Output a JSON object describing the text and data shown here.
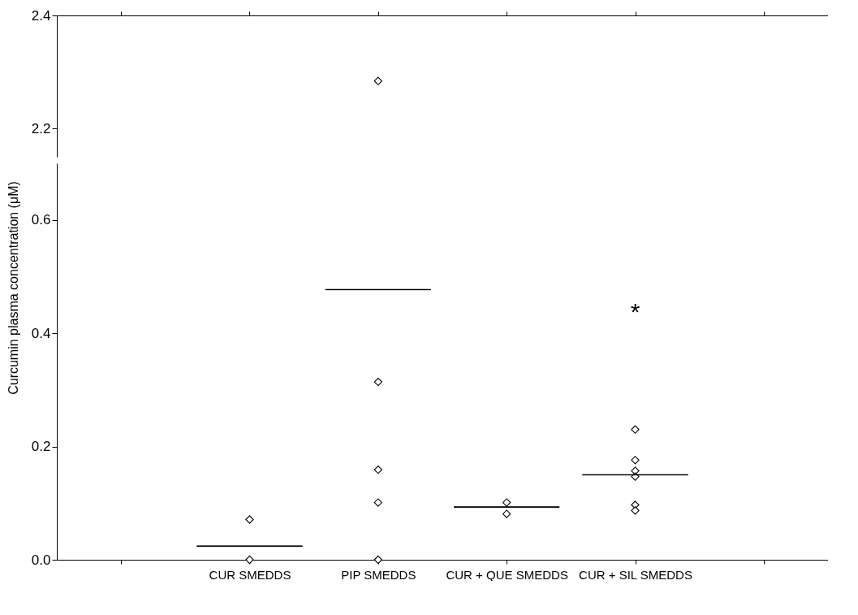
{
  "chart_data": [
    {
      "type": "scatter",
      "categories": [
        null,
        "CUR SMEDDS",
        "PIP SMEDDS",
        "CUR + QUE SMEDDS",
        "CUR + SIL SMEDDS",
        null
      ],
      "ylim": [
        2.15,
        2.4
      ],
      "yticks": [
        2.2,
        2.4
      ],
      "tick_labels": "y",
      "marker": "diamond",
      "grid": false,
      "series": [
        {
          "color": "#000000",
          "x": [
            "PIP SMEDDS"
          ],
          "values": [
            2.284
          ]
        }
      ]
    },
    {
      "type": "scatter",
      "categories": [
        null,
        "CUR SMEDDS",
        "PIP SMEDDS",
        "CUR + QUE SMEDDS",
        "CUR + SIL SMEDDS",
        null
      ],
      "ylim": [
        0,
        0.7
      ],
      "yticks": [
        {
          "value": 0,
          "label": "0.0"
        },
        0.2,
        0.4,
        0.6
      ],
      "ylabel": "Curcumin plasma concentration (μM)",
      "marker": "diamond",
      "grid": false,
      "annotations": [
        "*"
      ],
      "series": [
        {
          "color": "#000000",
          "x": [
            "CUR SMEDDS",
            "CUR SMEDDS",
            "PIP SMEDDS",
            "PIP SMEDDS",
            "PIP SMEDDS",
            "PIP SMEDDS",
            "CUR + QUE SMEDDS",
            "CUR + QUE SMEDDS",
            "CUR + SIL SMEDDS",
            "CUR + SIL SMEDDS",
            "CUR + SIL SMEDDS",
            "CUR + SIL SMEDDS",
            "CUR + SIL SMEDDS",
            "CUR + SIL SMEDDS"
          ],
          "values": [
            0.071,
            0,
            0.314,
            0.159,
            0.101,
            0,
            0.101,
            0.081,
            0.23,
            0.176,
            0.157,
            0.147,
            0.097,
            0.087
          ]
        },
        {
          "type": "box",
          "color": "#000000",
          "boxes": [
            null,
            {
              "low": 0.024,
              "q1": 0.024,
              "median": 0.024,
              "q3": 0.024,
              "high": 0.024
            },
            {
              "low": 0.477,
              "q1": 0.477,
              "median": 0.477,
              "q3": 0.477,
              "high": 0.477
            },
            {
              "low": 0.093,
              "q1": 0.093,
              "median": 0.093,
              "q3": 0.093,
              "high": 0.093
            },
            {
              "low": 0.15,
              "q1": 0.15,
              "median": 0.15,
              "q3": 0.15,
              "high": 0.15
            },
            null
          ]
        }
      ]
    }
  ]
}
